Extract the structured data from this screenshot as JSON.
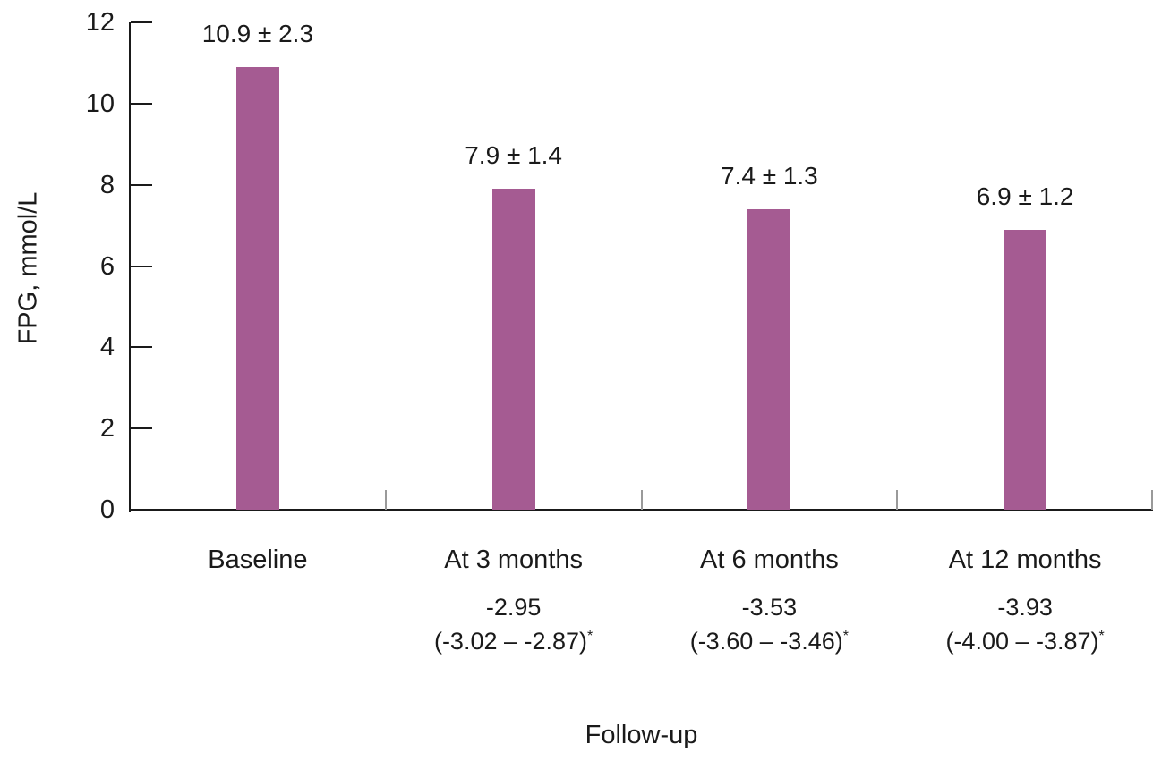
{
  "chart_data": {
    "type": "bar",
    "title": "",
    "xlabel": "Follow-up",
    "ylabel": "FPG, mmol/L",
    "ylim": [
      0,
      12
    ],
    "yticks": [
      0,
      2,
      4,
      6,
      8,
      10,
      12
    ],
    "grid": false,
    "legend": "none",
    "bar_color": "#a55b92",
    "categories": [
      "Baseline",
      "At 3 months",
      "At 6 months",
      "At 12 months"
    ],
    "values": [
      10.9,
      7.9,
      7.4,
      6.9
    ],
    "value_labels": [
      "10.9 ± 2.3",
      "7.9 ± 1.4",
      "7.4 ± 1.3",
      "6.9 ± 1.2"
    ],
    "sd": [
      2.3,
      1.4,
      1.3,
      1.2
    ],
    "mean_change": [
      null,
      "-2.95",
      "-3.53",
      "-3.93"
    ],
    "ci": [
      null,
      "(-3.02 – -2.87)",
      "(-3.60 – -3.46)",
      "(-4.00 – -3.87)"
    ],
    "ci_note_symbol": "*"
  }
}
